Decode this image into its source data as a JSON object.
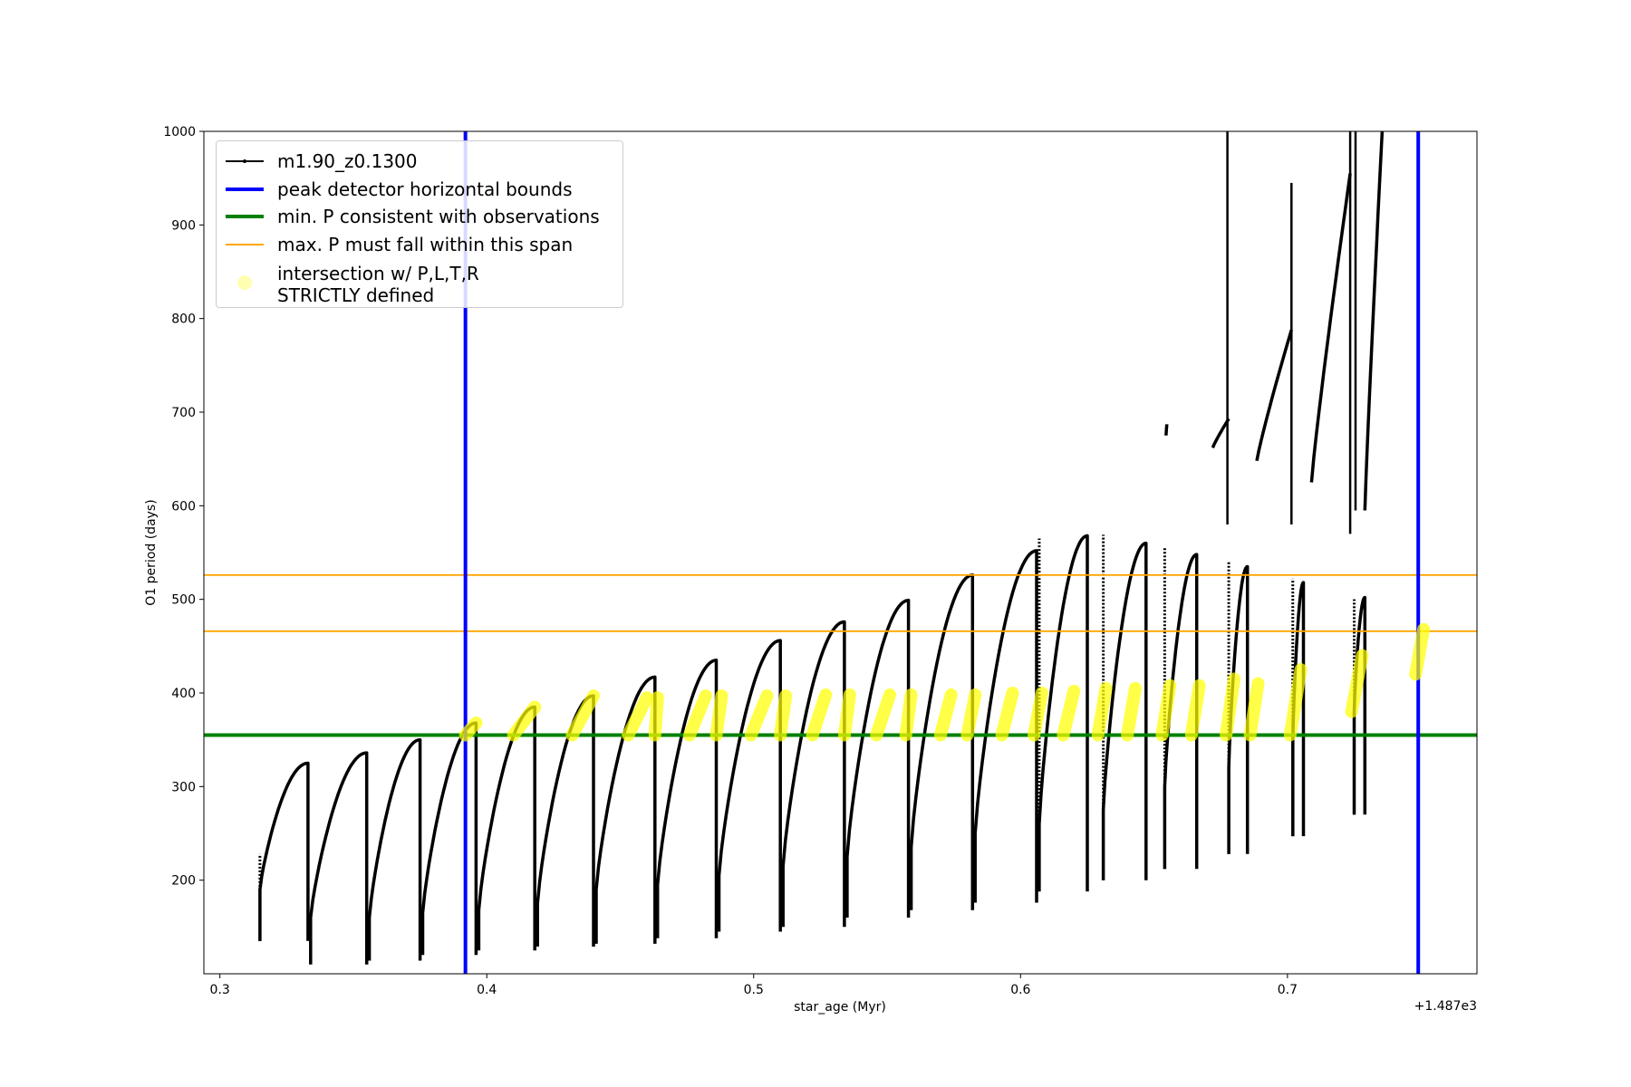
{
  "chart_data": {
    "type": "line",
    "xlabel": "star_age (Myr)",
    "ylabel": "O1 period (days)",
    "x_offset_text": "+1.487e3",
    "x_ticks": [
      "0.3",
      "0.4",
      "0.5",
      "0.6",
      "0.7"
    ],
    "x_tick_values": [
      0.3,
      0.4,
      0.5,
      0.6,
      0.7
    ],
    "y_ticks": [
      "200",
      "300",
      "400",
      "500",
      "600",
      "700",
      "800",
      "900",
      "1000"
    ],
    "y_tick_values": [
      200,
      300,
      400,
      500,
      600,
      700,
      800,
      900,
      1000
    ],
    "xlim": [
      0.294,
      0.771
    ],
    "ylim": [
      100,
      1000
    ],
    "grid": false,
    "legend_position": "upper-left",
    "legend": [
      {
        "key": "track",
        "label": "m1.90_z0.1300",
        "color": "#000000"
      },
      {
        "key": "bounds",
        "label": "peak detector horizontal bounds",
        "color": "#0000ff"
      },
      {
        "key": "minp",
        "label": "min. P consistent with observations",
        "color": "#008000"
      },
      {
        "key": "maxp",
        "label": "max. P must fall within this span",
        "color": "#ffa500"
      },
      {
        "key": "intersect",
        "label": "intersection w/ P,L,T,R\nSTRICTLY defined",
        "color": "#ffff00"
      }
    ],
    "vertical_bounds": [
      0.392,
      0.749
    ],
    "min_period": 355,
    "max_period_span": [
      466,
      526
    ],
    "series": [
      {
        "name": "m1.90_z0.1300",
        "color": "#000000",
        "cycles": [
          {
            "start": 0.315,
            "end": 0.333,
            "low": 135,
            "rise": 190,
            "peak": 325,
            "spike": 228
          },
          {
            "start": 0.334,
            "end": 0.355,
            "low": 110,
            "rise": 160,
            "peak": 336
          },
          {
            "start": 0.356,
            "end": 0.375,
            "low": 114,
            "rise": 160,
            "peak": 350
          },
          {
            "start": 0.376,
            "end": 0.396,
            "low": 120,
            "rise": 165,
            "peak": 368
          },
          {
            "start": 0.397,
            "end": 0.418,
            "low": 125,
            "rise": 168,
            "peak": 385
          },
          {
            "start": 0.419,
            "end": 0.44,
            "low": 129,
            "rise": 175,
            "peak": 397
          },
          {
            "start": 0.441,
            "end": 0.463,
            "low": 132,
            "rise": 190,
            "peak": 417
          },
          {
            "start": 0.464,
            "end": 0.486,
            "low": 138,
            "rise": 195,
            "peak": 435
          },
          {
            "start": 0.487,
            "end": 0.51,
            "low": 145,
            "rise": 205,
            "peak": 456
          },
          {
            "start": 0.511,
            "end": 0.534,
            "low": 150,
            "rise": 215,
            "peak": 476
          },
          {
            "start": 0.535,
            "end": 0.558,
            "low": 160,
            "rise": 225,
            "peak": 499
          },
          {
            "start": 0.559,
            "end": 0.582,
            "low": 168,
            "rise": 235,
            "peak": 526
          },
          {
            "start": 0.583,
            "end": 0.606,
            "low": 176,
            "rise": 250,
            "peak": 552
          },
          {
            "start": 0.607,
            "end": 0.625,
            "low": 188,
            "rise": 260,
            "peak": 568,
            "spike": 565
          },
          {
            "start": 0.631,
            "end": 0.647,
            "low": 200,
            "rise": 275,
            "peak": 560,
            "spike": 569
          },
          {
            "start": 0.654,
            "end": 0.666,
            "low": 212,
            "rise": 300,
            "peak": 548,
            "spike": 555
          },
          {
            "start": 0.678,
            "end": 0.685,
            "low": 228,
            "rise": 320,
            "peak": 535,
            "spike": 540
          },
          {
            "start": 0.702,
            "end": 0.706,
            "low": 247,
            "rise": 350,
            "peak": 518,
            "spike": 522
          },
          {
            "start": 0.725,
            "end": 0.729,
            "low": 270,
            "rise": 380,
            "peak": 502,
            "spike": 500
          }
        ],
        "upper_branches": [
          {
            "start": 0.6545,
            "end": 0.6548,
            "low": 675,
            "peak": 687
          },
          {
            "start": 0.672,
            "end": 0.678,
            "low": 662,
            "peak": 693
          },
          {
            "start": 0.6885,
            "end": 0.7015,
            "low": 648,
            "peak": 788
          },
          {
            "start": 0.709,
            "end": 0.7235,
            "low": 625,
            "peak": 955
          },
          {
            "start": 0.729,
            "end": 0.7355,
            "low": 595,
            "peak": 1000
          }
        ],
        "jumps": [
          {
            "x": 0.6775,
            "low": 580,
            "high": 1000
          },
          {
            "x": 0.7015,
            "low": 580,
            "high": 945
          },
          {
            "x": 0.7235,
            "low": 570,
            "high": 1000
          },
          {
            "x": 0.7255,
            "low": 595,
            "high": 1000
          }
        ]
      }
    ],
    "intersections": [
      {
        "x0": 0.392,
        "x1": 0.396,
        "y0": 355,
        "y1": 368
      },
      {
        "x0": 0.41,
        "x1": 0.418,
        "y0": 355,
        "y1": 385
      },
      {
        "x0": 0.432,
        "x1": 0.44,
        "y0": 355,
        "y1": 397
      },
      {
        "x0": 0.453,
        "x1": 0.46,
        "y0": 355,
        "y1": 395
      },
      {
        "x0": 0.463,
        "x1": 0.464,
        "y0": 355,
        "y1": 395
      },
      {
        "x0": 0.476,
        "x1": 0.482,
        "y0": 355,
        "y1": 397
      },
      {
        "x0": 0.486,
        "x1": 0.488,
        "y0": 355,
        "y1": 397
      },
      {
        "x0": 0.499,
        "x1": 0.505,
        "y0": 355,
        "y1": 397
      },
      {
        "x0": 0.51,
        "x1": 0.512,
        "y0": 355,
        "y1": 397
      },
      {
        "x0": 0.522,
        "x1": 0.527,
        "y0": 355,
        "y1": 398
      },
      {
        "x0": 0.534,
        "x1": 0.536,
        "y0": 355,
        "y1": 398
      },
      {
        "x0": 0.546,
        "x1": 0.551,
        "y0": 355,
        "y1": 398
      },
      {
        "x0": 0.557,
        "x1": 0.559,
        "y0": 355,
        "y1": 398
      },
      {
        "x0": 0.57,
        "x1": 0.574,
        "y0": 355,
        "y1": 398
      },
      {
        "x0": 0.58,
        "x1": 0.583,
        "y0": 355,
        "y1": 398
      },
      {
        "x0": 0.593,
        "x1": 0.597,
        "y0": 355,
        "y1": 400
      },
      {
        "x0": 0.605,
        "x1": 0.608,
        "y0": 355,
        "y1": 400
      },
      {
        "x0": 0.616,
        "x1": 0.62,
        "y0": 355,
        "y1": 402
      },
      {
        "x0": 0.629,
        "x1": 0.632,
        "y0": 355,
        "y1": 405
      },
      {
        "x0": 0.64,
        "x1": 0.643,
        "y0": 355,
        "y1": 405
      },
      {
        "x0": 0.653,
        "x1": 0.656,
        "y0": 355,
        "y1": 408
      },
      {
        "x0": 0.664,
        "x1": 0.667,
        "y0": 355,
        "y1": 408
      },
      {
        "x0": 0.677,
        "x1": 0.68,
        "y0": 355,
        "y1": 415
      },
      {
        "x0": 0.686,
        "x1": 0.689,
        "y0": 355,
        "y1": 410
      },
      {
        "x0": 0.701,
        "x1": 0.705,
        "y0": 355,
        "y1": 425
      },
      {
        "x0": 0.724,
        "x1": 0.728,
        "y0": 380,
        "y1": 440
      },
      {
        "x0": 0.748,
        "x1": 0.751,
        "y0": 420,
        "y1": 468
      }
    ]
  }
}
